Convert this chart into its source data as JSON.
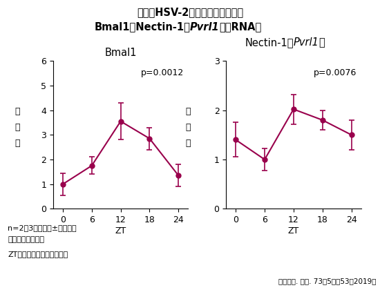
{
  "title_line1": "マウスHSV-2感染部皮膚における",
  "title_line2_pre": "Bmal1、Nectin-1（",
  "title_line2_italic": "Pvrl1",
  "title_line2_post": "）のRNA量",
  "subplot1_title": "Bmal1",
  "subplot2_title_pre": "Nectin-1（",
  "subplot2_title_italic": "Pvrl1",
  "subplot2_title_post": "）",
  "xlabel": "ZT",
  "ylabel_chars": [
    "発",
    "現",
    "量"
  ],
  "x_values": [
    0,
    6,
    12,
    18,
    24
  ],
  "bmal1_y": [
    1.0,
    1.75,
    3.55,
    2.85,
    1.35
  ],
  "bmal1_err": [
    0.45,
    0.35,
    0.75,
    0.45,
    0.45
  ],
  "nectin_y": [
    1.4,
    1.0,
    2.02,
    1.8,
    1.5
  ],
  "nectin_err": [
    0.35,
    0.22,
    0.3,
    0.2,
    0.3
  ],
  "bmal1_ylim": [
    0,
    6
  ],
  "bmal1_yticks": [
    0,
    1,
    2,
    3,
    4,
    5,
    6
  ],
  "nectin_ylim": [
    0,
    3
  ],
  "nectin_yticks": [
    0,
    1,
    2,
    3
  ],
  "p_bmal1": "p=0.0012",
  "p_nectin": "p=0.0076",
  "line_color": "#99004C",
  "note1": "n=2～3　平均値±標準偏差",
  "note2": "一元配置分散分析",
  "note3": "ZT：ツァイトゲーバー時間",
  "citation": "川村龍吉. 臨皮. 73（5増）53（2019）",
  "background": "#ffffff"
}
